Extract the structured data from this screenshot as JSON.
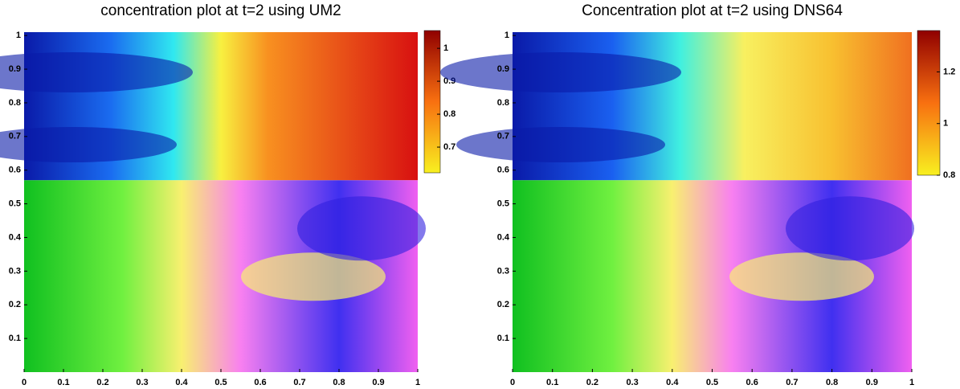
{
  "chart_data": [
    {
      "type": "heatmap",
      "title": "concentration plot at t=2 using UM2",
      "xlim": [
        0,
        1
      ],
      "xticks": [
        0,
        0.1,
        0.2,
        0.3,
        0.4,
        0.5,
        0.6,
        0.7,
        0.8,
        0.9,
        1
      ],
      "ylim": [
        0,
        1.01
      ],
      "yticks": [
        0.1,
        0.2,
        0.3,
        0.4,
        0.5,
        0.6,
        0.7,
        0.8,
        0.9,
        1
      ],
      "colorbar": {
        "lim": [
          0.622,
          1.054
        ],
        "ticks": [
          0.7,
          0.8,
          0.9,
          1
        ]
      }
    },
    {
      "type": "heatmap",
      "title": "Concentration plot at t=2 using DNS64",
      "xlim": [
        0,
        1
      ],
      "xticks": [
        0,
        0.1,
        0.2,
        0.3,
        0.4,
        0.5,
        0.6,
        0.7,
        0.8,
        0.9,
        1
      ],
      "ylim": [
        0,
        1.01
      ],
      "yticks": [
        0.1,
        0.2,
        0.3,
        0.4,
        0.5,
        0.6,
        0.7,
        0.8,
        0.9,
        1
      ],
      "colorbar": {
        "lim": [
          0.8,
          1.36
        ],
        "ticks": [
          0.8,
          1,
          1.2
        ]
      }
    }
  ]
}
